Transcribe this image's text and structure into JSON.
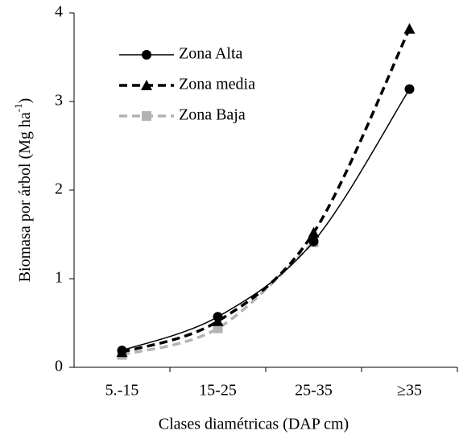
{
  "chart_data": {
    "type": "line",
    "xlabel": "Clases diamétricas (DAP cm)",
    "ylabel": {
      "text": "Biomasa por árbol (Mg ha",
      "superscript": "-1",
      "close": ")"
    },
    "categories": [
      "5.-15",
      "15-25",
      "25-35",
      "≥35"
    ],
    "series": [
      {
        "name": "Zona Alta",
        "color": "#000000",
        "marker": "circle",
        "dash": false,
        "values": [
          0.19,
          0.57,
          1.42,
          3.14
        ]
      },
      {
        "name": "Zona media",
        "color": "#000000",
        "marker": "triangle",
        "dash": true,
        "values": [
          0.17,
          0.52,
          1.52,
          3.82
        ]
      },
      {
        "name": "Zona Baja",
        "color": "#b3b3b3",
        "marker": "square",
        "dash": true,
        "values": [
          0.14,
          0.44,
          1.41,
          null
        ]
      }
    ],
    "ylim": [
      0,
      4
    ],
    "yticks": [
      0,
      1,
      2,
      3,
      4
    ],
    "grid": false,
    "legend": "upper left"
  }
}
